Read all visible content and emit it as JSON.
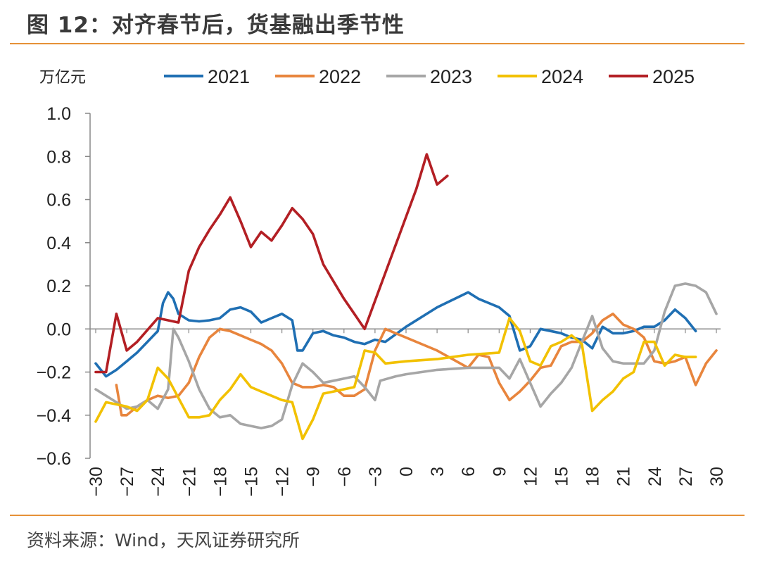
{
  "header": {
    "title": "图 12：对齐春节后，货基融出季节性"
  },
  "footer": {
    "source": "资料来源：Wind，天风证券研究所"
  },
  "chart_data": {
    "type": "line",
    "unit_label": "万亿元",
    "x": [
      -30,
      30
    ],
    "xticks": [
      -30,
      -27,
      -24,
      -21,
      -18,
      -15,
      -12,
      -9,
      -6,
      -3,
      0,
      3,
      6,
      9,
      12,
      15,
      18,
      21,
      24,
      27,
      30
    ],
    "xtick_labels": [
      "−30",
      "−27",
      "−24",
      "−21",
      "−18",
      "−15",
      "−12",
      "−9",
      "−6",
      "−3",
      "0",
      "3",
      "6",
      "9",
      "12",
      "15",
      "18",
      "21",
      "24",
      "27",
      "30"
    ],
    "ylim": [
      -0.6,
      1.0
    ],
    "yticks": [
      1.0,
      0.8,
      0.6,
      0.4,
      0.2,
      0.0,
      -0.2,
      -0.4,
      -0.6
    ],
    "ytick_labels": [
      "1.0",
      "0.8",
      "0.6",
      "0.4",
      "0.2",
      "0.0",
      "−0.2",
      "−0.4",
      "−0.6"
    ],
    "legend_position": "top",
    "series": [
      {
        "name": "2021",
        "color": "#1F6FB3",
        "points": [
          [
            -30,
            -0.16
          ],
          [
            -29,
            -0.22
          ],
          [
            -28,
            -0.19
          ],
          [
            -27,
            -0.15
          ],
          [
            -26,
            -0.11
          ],
          [
            -25,
            -0.06
          ],
          [
            -24,
            -0.01
          ],
          [
            -23.5,
            0.12
          ],
          [
            -23,
            0.17
          ],
          [
            -22.5,
            0.14
          ],
          [
            -22,
            0.07
          ],
          [
            -21,
            0.04
          ],
          [
            -20,
            0.035
          ],
          [
            -19,
            0.04
          ],
          [
            -18,
            0.05
          ],
          [
            -17,
            0.09
          ],
          [
            -16,
            0.1
          ],
          [
            -15,
            0.08
          ],
          [
            -14,
            0.03
          ],
          [
            -13,
            0.05
          ],
          [
            -12,
            0.07
          ],
          [
            -11,
            0.04
          ],
          [
            -10.5,
            -0.1
          ],
          [
            -10,
            -0.1
          ],
          [
            -9,
            -0.02
          ],
          [
            -8,
            -0.01
          ],
          [
            -7,
            -0.03
          ],
          [
            -6,
            -0.04
          ],
          [
            -5,
            -0.06
          ],
          [
            -4,
            -0.07
          ],
          [
            -3,
            -0.05
          ],
          [
            -2,
            -0.06
          ],
          [
            0,
            0.01
          ],
          [
            3,
            0.1
          ],
          [
            6,
            0.17
          ],
          [
            7,
            0.14
          ],
          [
            8,
            0.12
          ],
          [
            9,
            0.1
          ],
          [
            10,
            0.06
          ],
          [
            11,
            -0.1
          ],
          [
            12,
            -0.08
          ],
          [
            13,
            0.0
          ],
          [
            14,
            -0.01
          ],
          [
            15,
            -0.02
          ],
          [
            16,
            -0.04
          ],
          [
            17,
            -0.05
          ],
          [
            18,
            -0.09
          ],
          [
            19,
            0.01
          ],
          [
            20,
            -0.02
          ],
          [
            21,
            -0.02
          ],
          [
            22,
            -0.01
          ],
          [
            23,
            0.01
          ],
          [
            24,
            0.01
          ],
          [
            25,
            0.04
          ],
          [
            26,
            0.09
          ],
          [
            27,
            0.05
          ],
          [
            28,
            -0.01
          ]
        ]
      },
      {
        "name": "2022",
        "color": "#E8853D",
        "points": [
          [
            -28,
            -0.26
          ],
          [
            -27.5,
            -0.4
          ],
          [
            -27,
            -0.4
          ],
          [
            -26,
            -0.36
          ],
          [
            -25,
            -0.33
          ],
          [
            -24,
            -0.31
          ],
          [
            -23,
            -0.32
          ],
          [
            -22,
            -0.31
          ],
          [
            -21,
            -0.25
          ],
          [
            -20,
            -0.13
          ],
          [
            -19,
            -0.04
          ],
          [
            -18,
            0.0
          ],
          [
            -17,
            -0.01
          ],
          [
            -16,
            -0.03
          ],
          [
            -15,
            -0.05
          ],
          [
            -14,
            -0.07
          ],
          [
            -13,
            -0.1
          ],
          [
            -12,
            -0.16
          ],
          [
            -11,
            -0.25
          ],
          [
            -10,
            -0.27
          ],
          [
            -9,
            -0.27
          ],
          [
            -8,
            -0.26
          ],
          [
            -7,
            -0.27
          ],
          [
            -6,
            -0.31
          ],
          [
            -5,
            -0.31
          ],
          [
            -4,
            -0.28
          ],
          [
            -3,
            -0.1
          ],
          [
            -2,
            0.0
          ],
          [
            0,
            -0.04
          ],
          [
            3,
            -0.1
          ],
          [
            6,
            -0.18
          ],
          [
            7,
            -0.12
          ],
          [
            8,
            -0.13
          ],
          [
            9,
            -0.25
          ],
          [
            10,
            -0.33
          ],
          [
            11,
            -0.29
          ],
          [
            12,
            -0.24
          ],
          [
            13,
            -0.18
          ],
          [
            14,
            -0.17
          ],
          [
            15,
            -0.08
          ],
          [
            16,
            -0.06
          ],
          [
            17,
            -0.06
          ],
          [
            18,
            -0.02
          ],
          [
            19,
            0.04
          ],
          [
            20,
            0.07
          ],
          [
            21,
            0.02
          ],
          [
            22,
            0.0
          ],
          [
            23,
            -0.04
          ],
          [
            24,
            -0.15
          ],
          [
            25,
            -0.16
          ],
          [
            26,
            -0.15
          ],
          [
            27,
            -0.13
          ],
          [
            28,
            -0.26
          ],
          [
            29,
            -0.16
          ],
          [
            30,
            -0.1
          ]
        ]
      },
      {
        "name": "2023",
        "color": "#A6A6A6",
        "points": [
          [
            -30,
            -0.28
          ],
          [
            -29,
            -0.31
          ],
          [
            -28,
            -0.34
          ],
          [
            -27,
            -0.37
          ],
          [
            -26,
            -0.36
          ],
          [
            -25,
            -0.33
          ],
          [
            -24,
            -0.37
          ],
          [
            -23,
            -0.28
          ],
          [
            -22.5,
            0.0
          ],
          [
            -22,
            -0.04
          ],
          [
            -21,
            -0.15
          ],
          [
            -20,
            -0.28
          ],
          [
            -19,
            -0.37
          ],
          [
            -18,
            -0.41
          ],
          [
            -17,
            -0.4
          ],
          [
            -16,
            -0.44
          ],
          [
            -15,
            -0.45
          ],
          [
            -14,
            -0.46
          ],
          [
            -13,
            -0.45
          ],
          [
            -12,
            -0.42
          ],
          [
            -11,
            -0.26
          ],
          [
            -10,
            -0.16
          ],
          [
            -9,
            -0.2
          ],
          [
            -8,
            -0.25
          ],
          [
            -7,
            -0.24
          ],
          [
            -6,
            -0.23
          ],
          [
            -5,
            -0.22
          ],
          [
            -4,
            -0.27
          ],
          [
            -3,
            -0.33
          ],
          [
            -2.5,
            -0.24
          ],
          [
            -1,
            -0.22
          ],
          [
            0,
            -0.21
          ],
          [
            3,
            -0.19
          ],
          [
            6,
            -0.18
          ],
          [
            9,
            -0.18
          ],
          [
            10,
            -0.23
          ],
          [
            11,
            -0.14
          ],
          [
            12,
            -0.25
          ],
          [
            13,
            -0.36
          ],
          [
            14,
            -0.3
          ],
          [
            15,
            -0.25
          ],
          [
            16,
            -0.18
          ],
          [
            17,
            -0.06
          ],
          [
            18,
            0.06
          ],
          [
            19,
            -0.09
          ],
          [
            20,
            -0.15
          ],
          [
            21,
            -0.16
          ],
          [
            22,
            -0.16
          ],
          [
            23,
            -0.16
          ],
          [
            24,
            -0.1
          ],
          [
            25,
            0.08
          ],
          [
            26,
            0.2
          ],
          [
            27,
            0.21
          ],
          [
            28,
            0.2
          ],
          [
            29,
            0.17
          ],
          [
            30,
            0.07
          ]
        ]
      },
      {
        "name": "2024",
        "color": "#F2C100",
        "points": [
          [
            -30,
            -0.43
          ],
          [
            -29,
            -0.34
          ],
          [
            -28,
            -0.35
          ],
          [
            -27,
            -0.36
          ],
          [
            -26,
            -0.38
          ],
          [
            -25,
            -0.33
          ],
          [
            -24,
            -0.18
          ],
          [
            -23,
            -0.23
          ],
          [
            -22,
            -0.32
          ],
          [
            -21,
            -0.41
          ],
          [
            -20,
            -0.41
          ],
          [
            -19,
            -0.4
          ],
          [
            -18,
            -0.33
          ],
          [
            -17,
            -0.28
          ],
          [
            -16,
            -0.21
          ],
          [
            -15,
            -0.27
          ],
          [
            -14,
            -0.29
          ],
          [
            -13,
            -0.31
          ],
          [
            -12,
            -0.33
          ],
          [
            -11,
            -0.34
          ],
          [
            -10,
            -0.51
          ],
          [
            -9,
            -0.42
          ],
          [
            -8,
            -0.3
          ],
          [
            -7,
            -0.29
          ],
          [
            -6,
            -0.28
          ],
          [
            -5,
            -0.27
          ],
          [
            -4,
            -0.1
          ],
          [
            -3,
            -0.11
          ],
          [
            -2,
            -0.16
          ],
          [
            0,
            -0.15
          ],
          [
            3,
            -0.14
          ],
          [
            6,
            -0.12
          ],
          [
            9,
            -0.11
          ],
          [
            10,
            0.05
          ],
          [
            11,
            -0.01
          ],
          [
            12,
            -0.15
          ],
          [
            13,
            -0.17
          ],
          [
            14,
            -0.08
          ],
          [
            15,
            -0.06
          ],
          [
            16,
            -0.03
          ],
          [
            17,
            -0.07
          ],
          [
            18,
            -0.38
          ],
          [
            19,
            -0.33
          ],
          [
            20,
            -0.29
          ],
          [
            21,
            -0.23
          ],
          [
            22,
            -0.2
          ],
          [
            23,
            -0.06
          ],
          [
            24,
            -0.06
          ],
          [
            25,
            -0.17
          ],
          [
            26,
            -0.12
          ],
          [
            27,
            -0.13
          ],
          [
            28,
            -0.13
          ]
        ]
      },
      {
        "name": "2025",
        "color": "#B31F24",
        "points": [
          [
            -30,
            -0.2
          ],
          [
            -29,
            -0.2
          ],
          [
            -28,
            0.07
          ],
          [
            -27,
            -0.1
          ],
          [
            -26,
            -0.06
          ],
          [
            -24,
            0.05
          ],
          [
            -22,
            0.03
          ],
          [
            -21,
            0.27
          ],
          [
            -20,
            0.38
          ],
          [
            -19,
            0.46
          ],
          [
            -18,
            0.53
          ],
          [
            -17,
            0.61
          ],
          [
            -16,
            0.5
          ],
          [
            -15,
            0.38
          ],
          [
            -14,
            0.45
          ],
          [
            -13,
            0.41
          ],
          [
            -12,
            0.48
          ],
          [
            -11,
            0.56
          ],
          [
            -10,
            0.51
          ],
          [
            -9,
            0.44
          ],
          [
            -8,
            0.3
          ],
          [
            -7,
            0.22
          ],
          [
            -6,
            0.14
          ],
          [
            -5,
            0.07
          ],
          [
            -4,
            0.0
          ],
          [
            -3,
            0.13
          ],
          [
            -2,
            0.26
          ],
          [
            1,
            0.65
          ],
          [
            2,
            0.81
          ],
          [
            3,
            0.67
          ],
          [
            4,
            0.71
          ]
        ]
      }
    ]
  }
}
